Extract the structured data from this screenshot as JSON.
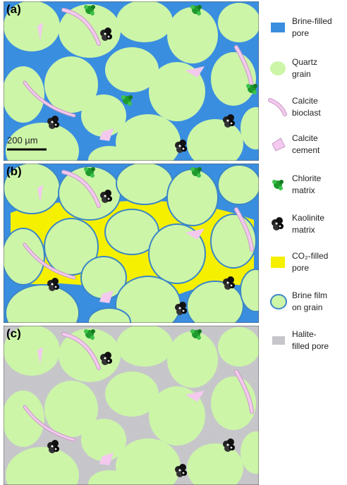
{
  "panels": [
    {
      "label": "(a)"
    },
    {
      "label": "(b)"
    },
    {
      "label": "(c)"
    }
  ],
  "scale_bar": "200 µm",
  "legend": [
    {
      "lines": [
        "Brine-filled",
        "pore"
      ]
    },
    {
      "lines": [
        "Quartz",
        "grain"
      ]
    },
    {
      "lines": [
        "Calcite",
        "bioclast"
      ]
    },
    {
      "lines": [
        "Calcite",
        "cement"
      ]
    },
    {
      "lines": [
        "Chlorite",
        "matrix"
      ]
    },
    {
      "lines": [
        "Kaolinite",
        "matrix"
      ]
    },
    {
      "lines": [
        "CO₂-filled",
        "pore"
      ]
    },
    {
      "lines": [
        "Brine film",
        "on grain"
      ]
    },
    {
      "lines": [
        "Halite-",
        "filled pore"
      ]
    }
  ]
}
